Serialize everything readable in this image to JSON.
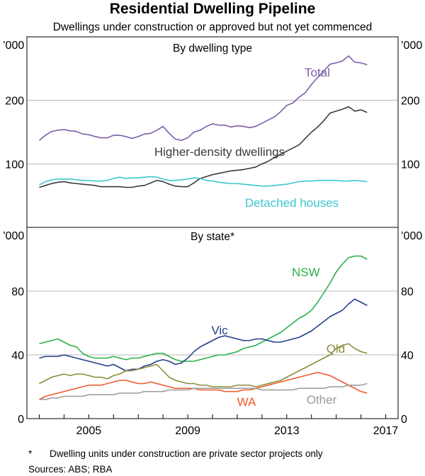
{
  "title": "Residential Dwelling Pipeline",
  "subtitle": "Dwellings under construction or approved but not yet commenced",
  "footnote_marker": "*",
  "footnote": "Dwelling units under construction are private sector projects only",
  "sources": "Sources: ABS; RBA",
  "colors": {
    "total": "#7b5ea7",
    "higher_density": "#3a3a3a",
    "detached": "#3cc6cf",
    "nsw": "#2bb04a",
    "vic": "#233f8c",
    "qld": "#8c8c3c",
    "wa": "#ef5a2a",
    "other": "#9a9a9a",
    "grid": "#b8b8b8",
    "axis": "#000000"
  },
  "chart_data": [
    {
      "type": "line",
      "panel": "top",
      "title": "By dwelling type",
      "unit_label": "’000",
      "ylim": [
        0,
        300
      ],
      "yticks": [
        100,
        200
      ],
      "ytick_labels": [
        "100",
        "200"
      ],
      "xlim": [
        2002.5,
        2017.5
      ],
      "x_start": 2003.0,
      "x_step": 0.25,
      "series": [
        {
          "name": "Total",
          "label": "Total",
          "color_key": "total",
          "values": [
            137,
            145,
            151,
            153,
            154,
            152,
            151,
            147,
            146,
            143,
            141,
            141,
            145,
            145,
            143,
            140,
            143,
            147,
            148,
            153,
            159,
            148,
            139,
            137,
            141,
            150,
            153,
            159,
            163,
            161,
            161,
            158,
            160,
            159,
            157,
            159,
            164,
            169,
            174,
            182,
            192,
            196,
            205,
            212,
            225,
            236,
            246,
            257,
            259,
            262,
            270,
            260,
            259,
            256
          ]
        },
        {
          "name": "Higher-density dwellings",
          "label": "Higher-density dwellings",
          "color_key": "higher_density",
          "values": [
            63,
            66,
            69,
            71,
            72,
            70,
            69,
            68,
            67,
            66,
            64,
            64,
            64,
            64,
            63,
            63,
            65,
            66,
            70,
            74,
            72,
            68,
            65,
            64,
            64,
            70,
            77,
            80,
            83,
            85,
            87,
            89,
            90,
            91,
            93,
            95,
            100,
            104,
            110,
            115,
            120,
            125,
            130,
            140,
            150,
            158,
            168,
            180,
            183,
            186,
            190,
            183,
            185,
            181
          ]
        },
        {
          "name": "Detached houses",
          "label": "Detached houses",
          "color_key": "detached",
          "values": [
            67,
            72,
            75,
            76,
            76,
            76,
            75,
            74,
            74,
            73,
            73,
            74,
            77,
            79,
            77,
            78,
            78,
            79,
            80,
            79,
            76,
            74,
            74,
            75,
            76,
            78,
            77,
            74,
            73,
            71,
            70,
            69,
            69,
            68,
            67,
            66,
            65,
            65,
            66,
            67,
            68,
            70,
            72,
            73,
            73,
            74,
            74,
            74,
            74,
            73,
            73,
            74,
            73,
            72
          ]
        }
      ]
    },
    {
      "type": "line",
      "panel": "bottom",
      "title": "By state*",
      "unit_label": "’000",
      "ylim": [
        0,
        120
      ],
      "yticks": [
        0,
        40,
        80
      ],
      "ytick_labels": [
        "0",
        "40",
        "80"
      ],
      "xlim": [
        2002.5,
        2017.5
      ],
      "x_start": 2003.0,
      "x_step": 0.25,
      "xticks": [
        2005,
        2009,
        2013,
        2017
      ],
      "xtick_labels": [
        "2005",
        "2009",
        "2013",
        "2017"
      ],
      "series": [
        {
          "name": "NSW",
          "label": "NSW",
          "color_key": "nsw",
          "values": [
            47,
            48,
            49,
            50,
            48,
            46,
            45,
            41,
            39,
            38,
            38,
            38,
            39,
            38,
            37,
            38,
            38,
            39,
            40,
            41,
            41,
            39,
            37,
            36,
            36,
            36,
            37,
            38,
            39,
            40,
            40,
            41,
            42,
            44,
            45,
            46,
            48,
            50,
            52,
            54,
            57,
            60,
            63,
            65,
            68,
            73,
            79,
            85,
            92,
            97,
            101,
            102,
            102,
            100
          ]
        },
        {
          "name": "Vic",
          "label": "Vic",
          "color_key": "vic",
          "values": [
            38,
            39,
            39,
            39,
            40,
            39,
            38,
            37,
            36,
            35,
            34,
            33,
            34,
            32,
            30,
            31,
            31,
            33,
            34,
            36,
            37,
            36,
            34,
            35,
            38,
            42,
            45,
            47,
            49,
            51,
            52,
            51,
            50,
            49,
            49,
            50,
            50,
            49,
            48,
            48,
            49,
            50,
            51,
            53,
            55,
            58,
            61,
            64,
            66,
            68,
            72,
            75,
            73,
            71
          ]
        },
        {
          "name": "Qld",
          "label": "Qld",
          "color_key": "qld",
          "values": [
            22,
            24,
            26,
            27,
            28,
            27,
            28,
            28,
            27,
            26,
            26,
            25,
            27,
            28,
            30,
            30,
            31,
            32,
            33,
            34,
            30,
            26,
            24,
            23,
            22,
            22,
            21,
            21,
            20,
            20,
            20,
            20,
            21,
            21,
            21,
            20,
            21,
            22,
            23,
            24,
            26,
            28,
            30,
            32,
            34,
            36,
            38,
            40,
            44,
            46,
            47,
            44,
            42,
            41
          ]
        },
        {
          "name": "WA",
          "label": "WA",
          "color_key": "wa",
          "values": [
            12,
            14,
            15,
            16,
            17,
            18,
            19,
            20,
            21,
            21,
            21,
            22,
            23,
            24,
            24,
            23,
            22,
            22,
            23,
            22,
            21,
            20,
            19,
            19,
            19,
            19,
            18,
            18,
            18,
            18,
            17,
            17,
            17,
            18,
            18,
            19,
            20,
            21,
            22,
            23,
            24,
            25,
            26,
            27,
            28,
            29,
            28,
            27,
            25,
            23,
            21,
            19,
            17,
            16
          ]
        },
        {
          "name": "Other",
          "label": "Other",
          "color_key": "other",
          "values": [
            12,
            12,
            13,
            13,
            14,
            14,
            14,
            14,
            15,
            15,
            15,
            15,
            15,
            16,
            16,
            16,
            16,
            17,
            17,
            17,
            17,
            18,
            18,
            18,
            18,
            19,
            19,
            19,
            19,
            19,
            19,
            19,
            19,
            19,
            19,
            19,
            18,
            18,
            18,
            18,
            18,
            18,
            19,
            19,
            19,
            19,
            19,
            20,
            20,
            20,
            21,
            21,
            21,
            22
          ]
        }
      ]
    }
  ]
}
